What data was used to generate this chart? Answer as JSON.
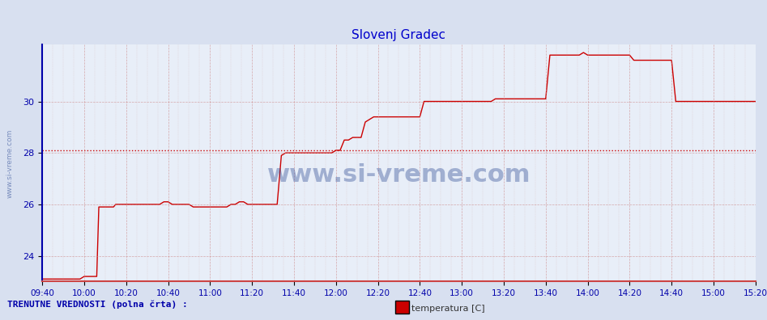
{
  "title": "Slovenj Gradec",
  "title_color": "#0000cc",
  "background_color": "#d8e0f0",
  "plot_bg_color": "#e8eef8",
  "grid_color_major": "#c8d0e0",
  "grid_color_minor": "#d8dde8",
  "line_color": "#cc0000",
  "xlabel": "",
  "ylabel": "",
  "xlim_start": 580,
  "xlim_end": 920,
  "ylim": [
    23.0,
    32.2
  ],
  "yticks": [
    24,
    26,
    28,
    30
  ],
  "xtick_labels": [
    "09:40",
    "10:00",
    "10:20",
    "10:40",
    "11:00",
    "11:20",
    "11:40",
    "12:00",
    "12:20",
    "12:40",
    "13:00",
    "13:20",
    "13:40",
    "14:00",
    "14:20",
    "14:40",
    "15:00",
    "15:20"
  ],
  "xtick_positions": [
    580,
    600,
    620,
    640,
    660,
    680,
    700,
    720,
    740,
    760,
    780,
    800,
    820,
    840,
    860,
    880,
    900,
    920
  ],
  "dotted_line_y": 28.1,
  "watermark_text": "www.si-vreme.com",
  "footer_left": "TRENUTNE VREDNOSTI (polna črta) :",
  "footer_legend_color": "#cc0000",
  "footer_legend_label": "temperatura [C]",
  "left_label": "www.si-vreme.com",
  "time_series": {
    "times": [
      580,
      582,
      584,
      586,
      588,
      590,
      592,
      594,
      596,
      598,
      600,
      601,
      602,
      604,
      606,
      607,
      608,
      609,
      610,
      611,
      612,
      613,
      614,
      615,
      616,
      617,
      618,
      619,
      620,
      621,
      622,
      624,
      626,
      628,
      630,
      632,
      634,
      636,
      638,
      640,
      642,
      644,
      646,
      648,
      650,
      652,
      654,
      656,
      658,
      660,
      662,
      664,
      666,
      668,
      670,
      672,
      674,
      676,
      678,
      680,
      682,
      684,
      686,
      688,
      690,
      692,
      694,
      696,
      698,
      700,
      702,
      704,
      706,
      708,
      710,
      712,
      714,
      716,
      718,
      720,
      722,
      724,
      726,
      728,
      730,
      732,
      734,
      736,
      738,
      740,
      742,
      744,
      746,
      748,
      750,
      752,
      754,
      756,
      758,
      760,
      762,
      764,
      766,
      768,
      770,
      772,
      774,
      776,
      778,
      780,
      782,
      784,
      786,
      788,
      790,
      792,
      794,
      796,
      798,
      800,
      802,
      804,
      806,
      808,
      810,
      812,
      814,
      816,
      818,
      820,
      822,
      824,
      826,
      828,
      830,
      832,
      834,
      836,
      838,
      840,
      842,
      844,
      846,
      848,
      850,
      852,
      854,
      856,
      858,
      860,
      862,
      864,
      866,
      868,
      870,
      872,
      874,
      876,
      878,
      880,
      882,
      884,
      886,
      888,
      890,
      892,
      894,
      896,
      898,
      900,
      902,
      904,
      906,
      908,
      910,
      912,
      914,
      916,
      918,
      920
    ],
    "temps": [
      23.1,
      23.1,
      23.1,
      23.1,
      23.1,
      23.1,
      23.1,
      23.1,
      23.1,
      23.1,
      23.2,
      23.2,
      23.2,
      23.2,
      23.2,
      25.9,
      25.9,
      25.9,
      25.9,
      25.9,
      25.9,
      25.9,
      25.9,
      26.0,
      26.0,
      26.0,
      26.0,
      26.0,
      26.0,
      26.0,
      26.0,
      26.0,
      26.0,
      26.0,
      26.0,
      26.0,
      26.0,
      26.0,
      26.1,
      26.1,
      26.0,
      26.0,
      26.0,
      26.0,
      26.0,
      25.9,
      25.9,
      25.9,
      25.9,
      25.9,
      25.9,
      25.9,
      25.9,
      25.9,
      26.0,
      26.0,
      26.1,
      26.1,
      26.0,
      26.0,
      26.0,
      26.0,
      26.0,
      26.0,
      26.0,
      26.0,
      27.9,
      28.0,
      28.0,
      28.0,
      28.0,
      28.0,
      28.0,
      28.0,
      28.0,
      28.0,
      28.0,
      28.0,
      28.0,
      28.1,
      28.1,
      28.5,
      28.5,
      28.6,
      28.6,
      28.6,
      29.2,
      29.3,
      29.4,
      29.4,
      29.4,
      29.4,
      29.4,
      29.4,
      29.4,
      29.4,
      29.4,
      29.4,
      29.4,
      29.4,
      30.0,
      30.0,
      30.0,
      30.0,
      30.0,
      30.0,
      30.0,
      30.0,
      30.0,
      30.0,
      30.0,
      30.0,
      30.0,
      30.0,
      30.0,
      30.0,
      30.0,
      30.1,
      30.1,
      30.1,
      30.1,
      30.1,
      30.1,
      30.1,
      30.1,
      30.1,
      30.1,
      30.1,
      30.1,
      30.1,
      31.8,
      31.8,
      31.8,
      31.8,
      31.8,
      31.8,
      31.8,
      31.8,
      31.9,
      31.8,
      31.8,
      31.8,
      31.8,
      31.8,
      31.8,
      31.8,
      31.8,
      31.8,
      31.8,
      31.8,
      31.6,
      31.6,
      31.6,
      31.6,
      31.6,
      31.6,
      31.6,
      31.6,
      31.6,
      31.6,
      30.0,
      30.0,
      30.0,
      30.0,
      30.0,
      30.0,
      30.0,
      30.0,
      30.0,
      30.0,
      30.0,
      30.0,
      30.0,
      30.0,
      30.0,
      30.0,
      30.0,
      30.0,
      30.0,
      30.0
    ]
  }
}
